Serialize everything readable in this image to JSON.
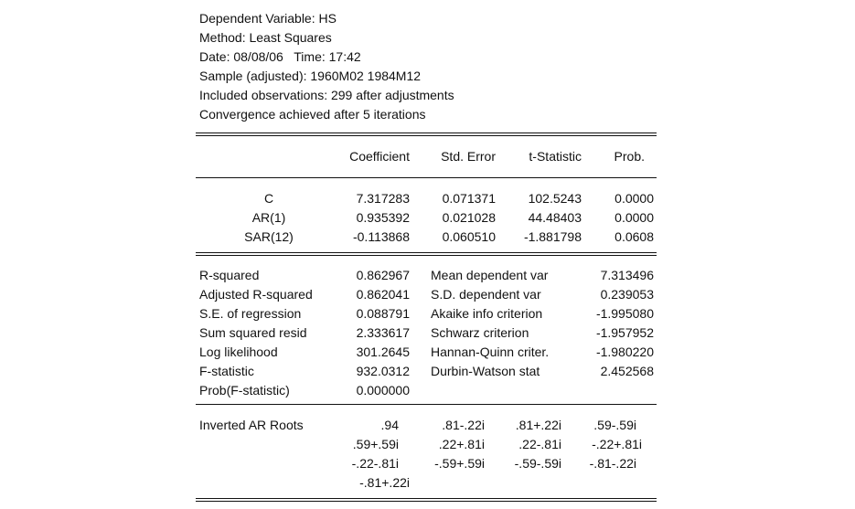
{
  "header": {
    "lines": [
      "Dependent Variable: HS",
      "Method: Least Squares",
      "Date: 08/08/06   Time: 17:42",
      "Sample (adjusted): 1960M02 1984M12",
      "Included observations: 299 after adjustments",
      "Convergence achieved after 5 iterations"
    ]
  },
  "columns": [
    "Coefficient",
    "Std. Error",
    "t-Statistic",
    "Prob."
  ],
  "coefficients": [
    {
      "name": "C",
      "coef": "7.317283",
      "se": "0.071371",
      "t": "102.5243",
      "p": "0.0000"
    },
    {
      "name": "AR(1)",
      "coef": "0.935392",
      "se": "0.021028",
      "t": "44.48403",
      "p": "0.0000"
    },
    {
      "name": "SAR(12)",
      "coef": "-0.113868",
      "se": "0.060510",
      "t": "-1.881798",
      "p": "0.0608"
    }
  ],
  "stats": [
    {
      "l": "R-squared",
      "lv": "0.862967",
      "r": "Mean dependent var",
      "rv": "7.313496"
    },
    {
      "l": "Adjusted R-squared",
      "lv": "0.862041",
      "r": "S.D. dependent var",
      "rv": "0.239053"
    },
    {
      "l": "S.E. of regression",
      "lv": "0.088791",
      "r": "Akaike info criterion",
      "rv": "-1.995080"
    },
    {
      "l": "Sum squared resid",
      "lv": "2.333617",
      "r": "Schwarz criterion",
      "rv": "-1.957952"
    },
    {
      "l": "Log likelihood",
      "lv": "301.2645",
      "r": "Hannan-Quinn criter.",
      "rv": "-1.980220"
    },
    {
      "l": "F-statistic",
      "lv": "932.0312",
      "r": "Durbin-Watson stat",
      "rv": "2.452568"
    },
    {
      "l": "Prob(F-statistic)",
      "lv": "0.000000",
      "r": "",
      "rv": ""
    }
  ],
  "roots": {
    "label": "Inverted AR Roots",
    "rows": [
      [
        ".94",
        ".81-.22i",
        ".81+.22i",
        ".59-.59i"
      ],
      [
        ".59+.59i",
        ".22+.81i",
        ".22-.81i",
        "-.22+.81i"
      ],
      [
        "-.22-.81i",
        "-.59+.59i",
        "-.59-.59i",
        "-.81-.22i"
      ],
      [
        "-.81+.22i",
        "",
        "",
        ""
      ]
    ]
  }
}
